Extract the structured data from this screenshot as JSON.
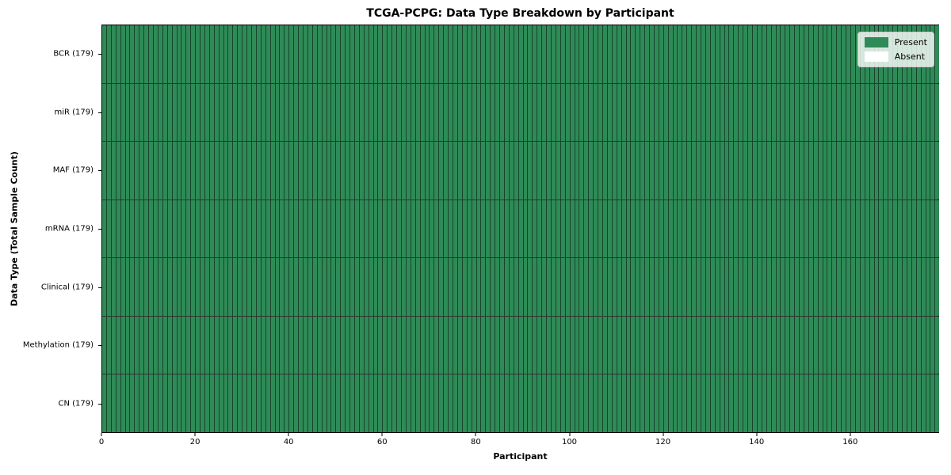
{
  "chart_data": {
    "type": "heatmap",
    "title": "TCGA-PCPG: Data Type Breakdown by Participant",
    "xlabel": "Participant",
    "ylabel": "Data Type (Total Sample Count)",
    "xlim": [
      0,
      179
    ],
    "n_participants": 179,
    "x_ticks": [
      0,
      20,
      40,
      60,
      80,
      100,
      120,
      140,
      160
    ],
    "rows": [
      {
        "label": "BCR (179)",
        "data_type": "BCR",
        "total_sample_count": 179,
        "present_count": 179,
        "absent_count": 0
      },
      {
        "label": "miR (179)",
        "data_type": "miR",
        "total_sample_count": 179,
        "present_count": 179,
        "absent_count": 0
      },
      {
        "label": "MAF (179)",
        "data_type": "MAF",
        "total_sample_count": 179,
        "present_count": 179,
        "absent_count": 0
      },
      {
        "label": "mRNA (179)",
        "data_type": "mRNA",
        "total_sample_count": 179,
        "present_count": 179,
        "absent_count": 0
      },
      {
        "label": "Clinical (179)",
        "data_type": "Clinical",
        "total_sample_count": 179,
        "present_count": 179,
        "absent_count": 0
      },
      {
        "label": "Methylation (179)",
        "data_type": "Methylation",
        "total_sample_count": 179,
        "present_count": 179,
        "absent_count": 0
      },
      {
        "label": "CN (179)",
        "data_type": "CN",
        "total_sample_count": 179,
        "present_count": 179,
        "absent_count": 0
      }
    ],
    "legend": {
      "position": "upper right",
      "entries": [
        {
          "label": "Present",
          "color": "#2e8b57"
        },
        {
          "label": "Absent",
          "color": "#ffffff"
        }
      ]
    },
    "colors": {
      "present": "#2e8b57",
      "absent": "#ffffff",
      "cell_edge": "rgba(0,0,0,0.5)",
      "row_separator": "rgba(0,0,0,0.8)",
      "spine": "#000000",
      "background": "#ffffff"
    }
  }
}
